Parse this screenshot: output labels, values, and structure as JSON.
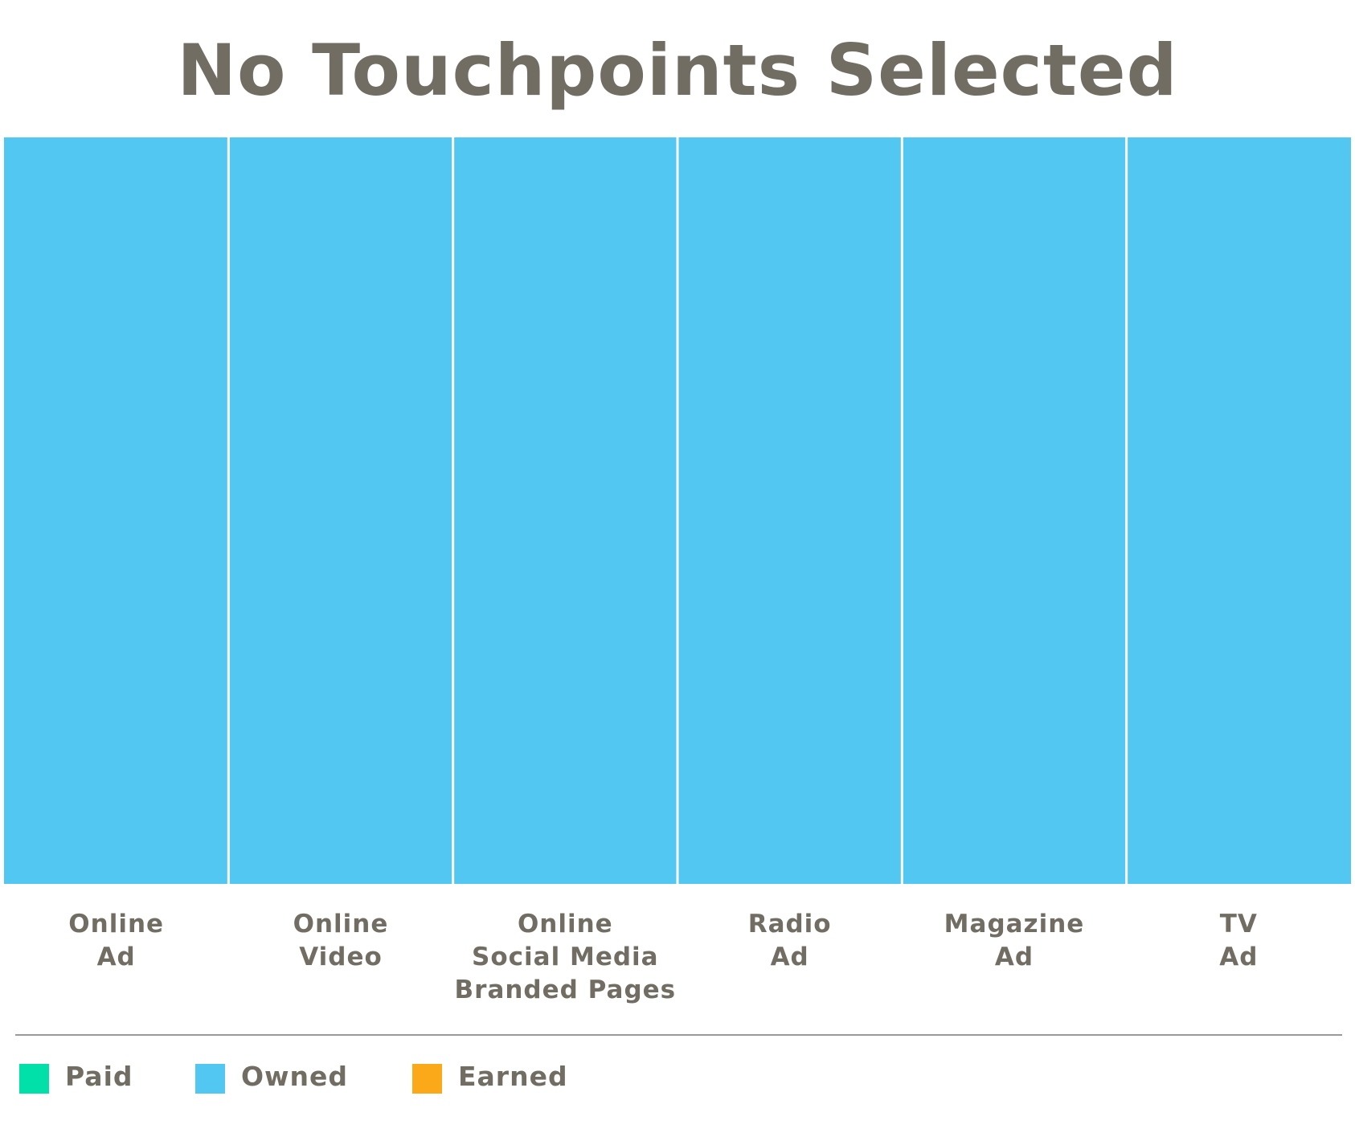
{
  "title": "No Touchpoints Selected",
  "chart_data": {
    "type": "bar",
    "stacked": true,
    "categories": [
      "Online\nAd",
      "Online\nVideo",
      "Online\nSocial Media\nBranded Pages",
      "Radio\nAd",
      "Magazine\nAd",
      "TV\nAd"
    ],
    "series": [
      {
        "name": "Paid",
        "color": "#00e0a8",
        "values": [
          0,
          0,
          0,
          0,
          0,
          0
        ]
      },
      {
        "name": "Owned",
        "color": "#52c7f2",
        "values": [
          100,
          100,
          100,
          100,
          100,
          100
        ]
      },
      {
        "name": "Earned",
        "color": "#fba919",
        "values": [
          0,
          0,
          0,
          0,
          0,
          0
        ]
      }
    ],
    "ylim": [
      0,
      100
    ],
    "grid": false,
    "legend_position": "bottom-left"
  }
}
